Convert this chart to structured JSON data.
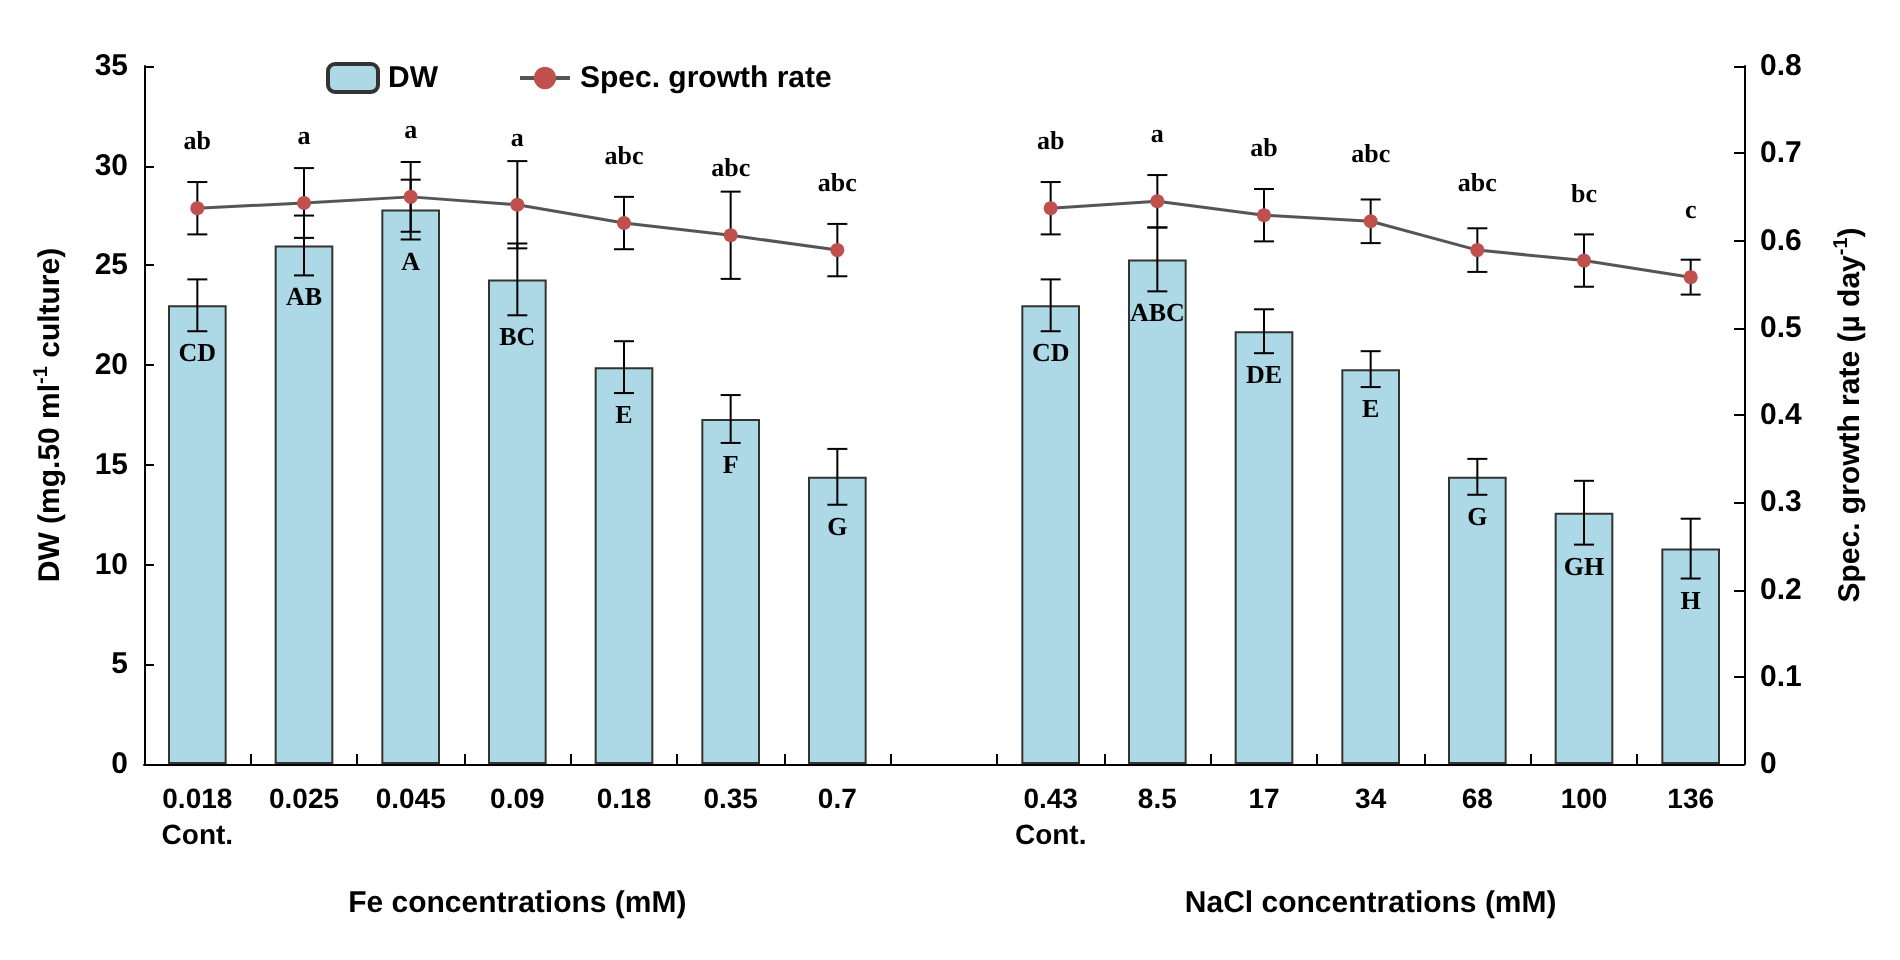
{
  "chart_data": {
    "type": "bar",
    "categories": [
      "0.018\nCont.",
      "0.025",
      "0.045",
      "0.09",
      "0.18",
      "0.35",
      "0.7",
      null,
      "0.43\nCont.",
      "8.5",
      "17",
      "34",
      "68",
      "100",
      "136"
    ],
    "xlabel": "Fe concentrations (mM)",
    "annotations": [
      "NaCl concentrations (mM)"
    ],
    "ylabel": "DW (mg.50 ml$^{-1}$ culture)",
    "y2label": "Spec. growth rate (µ day$^{-1}$)",
    "ylim": [
      0,
      35
    ],
    "yticks": [
      0,
      5,
      10,
      15,
      20,
      25,
      30,
      35
    ],
    "y2lim": [
      0,
      0.8
    ],
    "y2ticks": [
      0,
      0.1,
      0.2,
      0.3,
      0.4,
      0.5,
      0.6,
      0.7,
      0.8
    ],
    "legend": "top left",
    "grid": false,
    "marker": "circle",
    "series": [
      {
        "name": "DW",
        "color": "#add8e6",
        "values": [
          23.0,
          26.0,
          27.8,
          24.3,
          19.9,
          17.3,
          14.4,
          null,
          23.0,
          25.3,
          21.7,
          19.8,
          14.4,
          12.6,
          10.8
        ],
        "errors": [
          1.3,
          1.5,
          1.5,
          1.8,
          1.3,
          1.2,
          1.4,
          null,
          1.3,
          1.6,
          1.1,
          0.9,
          0.9,
          1.6,
          1.5
        ],
        "value_labels": [
          "CD",
          "AB",
          "A",
          "BC",
          "E",
          "F",
          "G",
          null,
          "CD",
          "ABC",
          "DE",
          "E",
          "G",
          "GH",
          "H"
        ]
      },
      {
        "name": "Spec. growth rate",
        "type": "line",
        "axis": "y2",
        "color": "#c0504d",
        "values": [
          0.637,
          0.643,
          0.65,
          0.641,
          0.62,
          0.606,
          0.589,
          null,
          0.637,
          0.645,
          0.629,
          0.622,
          0.589,
          0.577,
          0.558
        ],
        "errors": [
          0.03,
          0.04,
          0.04,
          0.05,
          0.03,
          0.05,
          0.03,
          null,
          0.03,
          0.03,
          0.03,
          0.025,
          0.025,
          0.03,
          0.02
        ],
        "value_labels": [
          "ab",
          "a",
          "a",
          "a",
          "abc",
          "abc",
          "abc",
          null,
          "ab",
          "a",
          "ab",
          "abc",
          "abc",
          "bc",
          "c"
        ]
      }
    ]
  }
}
